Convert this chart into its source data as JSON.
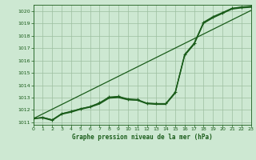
{
  "background_color": "#cde8d2",
  "grid_color": "#9dbfa0",
  "line_color": "#1a5c1a",
  "title": "Graphe pression niveau de la mer (hPa)",
  "xlim": [
    0,
    23
  ],
  "ylim": [
    1010.8,
    1020.5
  ],
  "yticks": [
    1011,
    1012,
    1013,
    1014,
    1015,
    1016,
    1017,
    1018,
    1019,
    1020
  ],
  "xticks": [
    0,
    1,
    2,
    3,
    4,
    5,
    6,
    7,
    8,
    9,
    10,
    11,
    12,
    13,
    14,
    15,
    16,
    17,
    18,
    19,
    20,
    21,
    22,
    23
  ],
  "x": [
    0,
    1,
    2,
    3,
    4,
    5,
    6,
    7,
    8,
    9,
    10,
    11,
    12,
    13,
    14,
    15,
    16,
    17,
    18,
    19,
    20,
    21,
    22,
    23
  ],
  "s_curve": [
    1011.3,
    1011.4,
    1011.2,
    1011.7,
    1011.85,
    1012.1,
    1012.25,
    1012.55,
    1013.0,
    1013.05,
    1012.85,
    1012.8,
    1012.55,
    1012.5,
    1012.5,
    1013.4,
    1016.45,
    1017.35,
    1019.05,
    1019.5,
    1019.85,
    1020.2,
    1020.3,
    1020.35
  ],
  "s_curve2": [
    1011.3,
    1011.35,
    1011.15,
    1011.65,
    1011.82,
    1012.05,
    1012.22,
    1012.48,
    1012.95,
    1013.0,
    1012.82,
    1012.78,
    1012.5,
    1012.45,
    1012.45,
    1013.35,
    1016.4,
    1017.3,
    1019.0,
    1019.45,
    1019.8,
    1020.15,
    1020.25,
    1020.3
  ],
  "s_linear": [
    1011.3,
    1011.68,
    1012.06,
    1012.44,
    1012.82,
    1013.2,
    1013.58,
    1013.96,
    1014.34,
    1014.72,
    1015.1,
    1015.48,
    1015.86,
    1016.24,
    1016.62,
    1017.0,
    1017.38,
    1017.76,
    1018.14,
    1018.52,
    1018.9,
    1019.28,
    1019.66,
    1020.04
  ],
  "s_marked": [
    1011.3,
    1011.4,
    1011.2,
    1011.7,
    1011.9,
    1012.1,
    1012.28,
    1012.58,
    1013.05,
    1013.1,
    1012.9,
    1012.85,
    1012.55,
    1012.52,
    1012.52,
    1013.45,
    1016.5,
    1017.4,
    1019.1,
    1019.55,
    1019.88,
    1020.22,
    1020.33,
    1020.38
  ]
}
